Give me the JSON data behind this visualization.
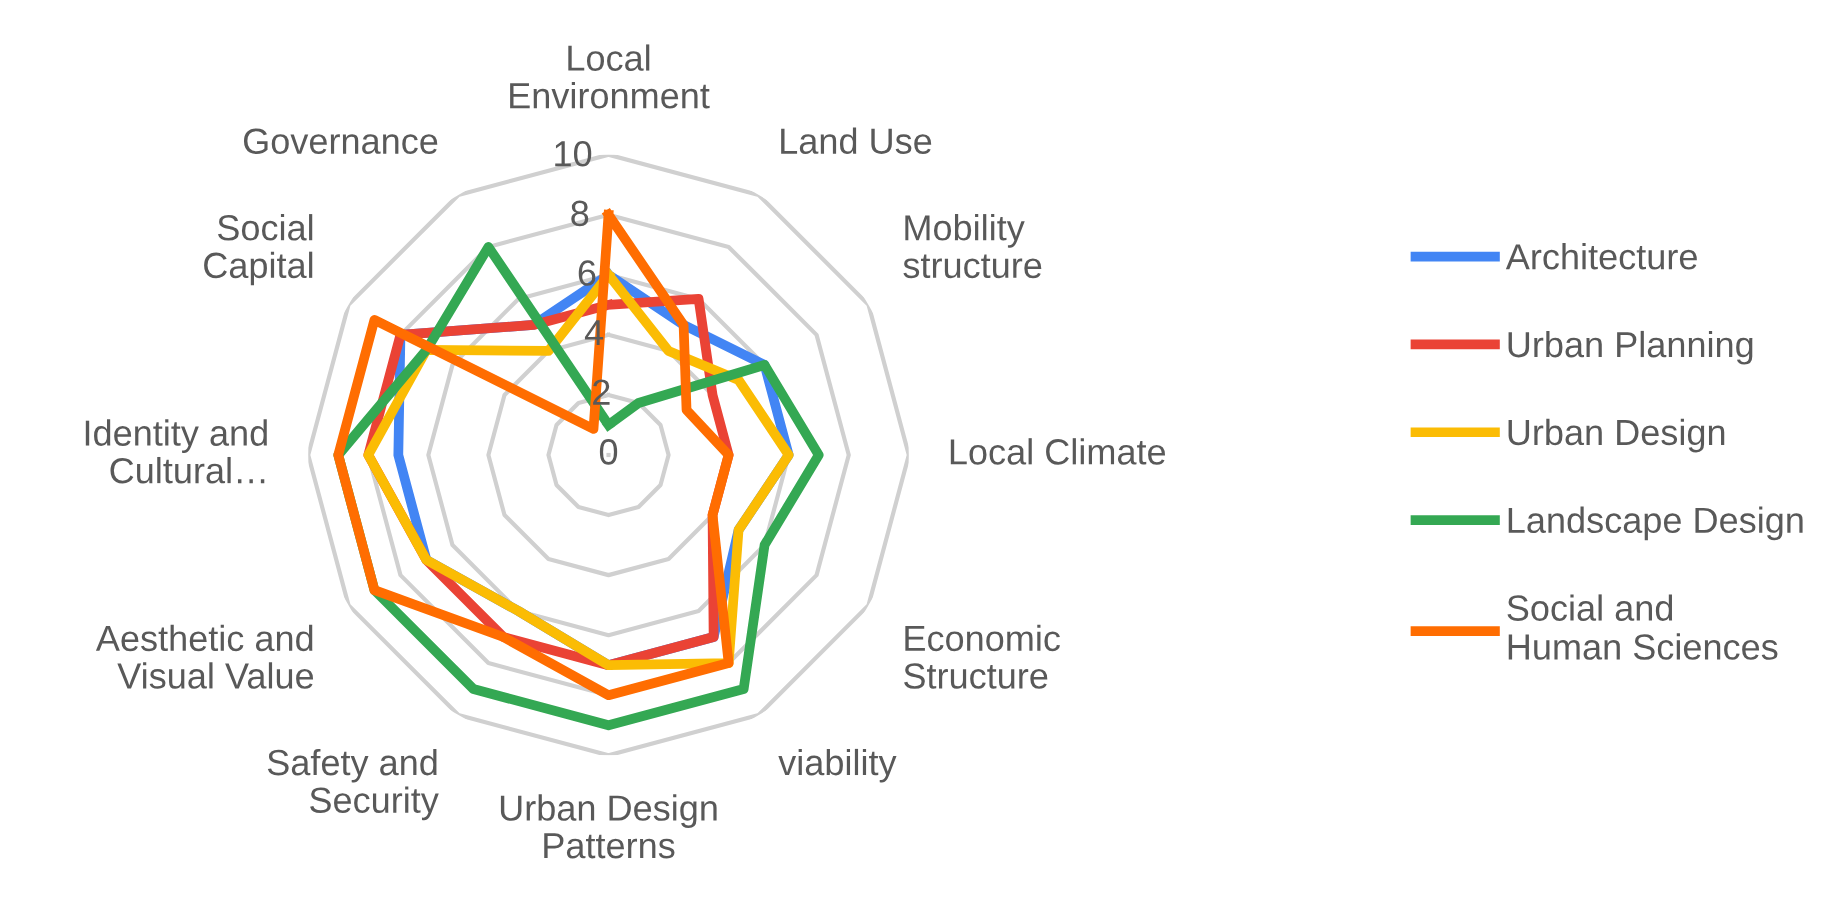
{
  "chart_data": {
    "type": "radar",
    "categories": [
      "Local Environment",
      "Land Use",
      "Mobility structure",
      "Local Climate",
      "Economic Structure",
      "viability",
      "Urban Design Patterns",
      "Safety and Security",
      "Aesthetic and Visual Value",
      "Identity and Cultural…",
      "Social Capital",
      "Governance"
    ],
    "series": [
      {
        "name": "Architecture",
        "color": "#4285f4",
        "values": [
          6,
          5,
          6,
          6,
          5,
          7,
          7,
          6,
          7,
          7,
          8,
          5
        ]
      },
      {
        "name": "Urban Planning",
        "color": "#ea4335",
        "values": [
          5,
          6,
          4,
          4,
          4,
          7,
          7,
          7,
          7,
          8,
          8,
          5
        ]
      },
      {
        "name": "Urban Design",
        "color": "#fbbc04",
        "values": [
          6,
          4,
          5,
          6,
          5,
          8,
          7,
          6,
          7,
          8,
          7,
          4
        ]
      },
      {
        "name": "Landscape Design",
        "color": "#34a853",
        "values": [
          1,
          2,
          6,
          7,
          6,
          9,
          9,
          9,
          9,
          9,
          7,
          8
        ]
      },
      {
        "name": "Social and Human Sciences",
        "color": "#ff6d01",
        "values": [
          8,
          5,
          3,
          4,
          4,
          8,
          8,
          7,
          9,
          9,
          9,
          1
        ]
      }
    ],
    "ylim": [
      0,
      10
    ],
    "yticks": [
      0,
      2,
      4,
      6,
      8,
      10
    ],
    "grid": true,
    "legend": "right"
  }
}
